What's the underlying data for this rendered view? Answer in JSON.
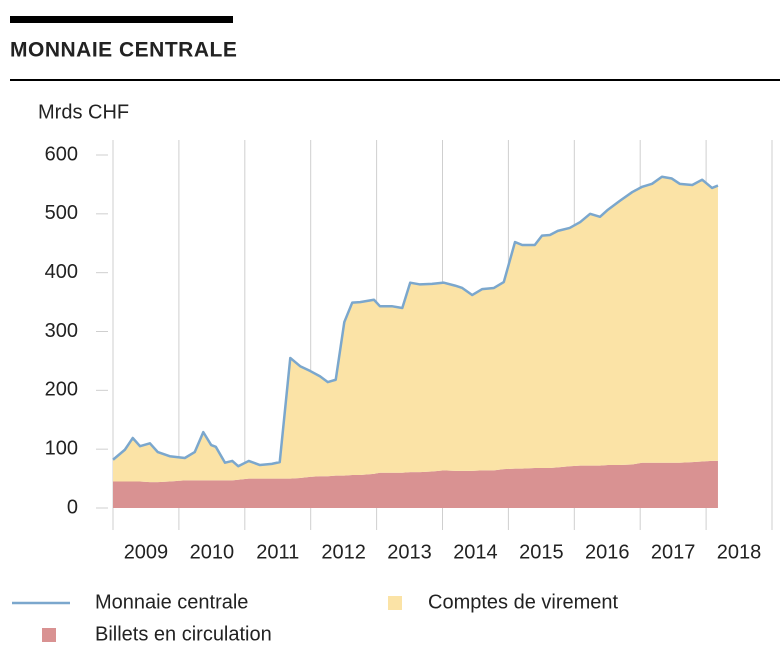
{
  "chart_data": {
    "type": "stacked_area_line",
    "title": "MONNAIE CENTRALE",
    "y_axis_label": "Mrds CHF",
    "xlim": [
      2009,
      2019
    ],
    "xticks": [
      2009,
      2010,
      2011,
      2012,
      2013,
      2014,
      2015,
      2016,
      2017,
      2018,
      2019
    ],
    "year_labels": [
      "2009",
      "2010",
      "2011",
      "2012",
      "2013",
      "2014",
      "2015",
      "2016",
      "2017",
      "2018"
    ],
    "ylim": [
      0,
      600
    ],
    "yticks": [
      0,
      100,
      200,
      300,
      400,
      500,
      600
    ],
    "grid": true,
    "x": [
      2009.0,
      2009.18,
      2009.3,
      2009.41,
      2009.56,
      2009.68,
      2009.86,
      2010.09,
      2010.24,
      2010.37,
      2010.49,
      2010.56,
      2010.7,
      2010.81,
      2010.9,
      2011.06,
      2011.23,
      2011.41,
      2011.53,
      2011.69,
      2011.84,
      2011.99,
      2012.14,
      2012.26,
      2012.38,
      2012.51,
      2012.63,
      2012.75,
      2012.96,
      2013.05,
      2013.23,
      2013.39,
      2013.51,
      2013.66,
      2013.84,
      2014.02,
      2014.19,
      2014.3,
      2014.45,
      2014.6,
      2014.78,
      2014.93,
      2015.1,
      2015.21,
      2015.4,
      2015.51,
      2015.63,
      2015.75,
      2015.93,
      2016.09,
      2016.24,
      2016.39,
      2016.51,
      2016.69,
      2016.88,
      2017.03,
      2017.18,
      2017.33,
      2017.48,
      2017.6,
      2017.79,
      2017.94,
      2018.09,
      2018.18
    ],
    "series": [
      {
        "name": "Billets en circulation",
        "kind": "area",
        "color": "#d99292",
        "values": [
          45,
          45,
          45,
          45,
          44,
          44,
          45,
          47,
          47,
          47,
          47,
          47,
          47,
          47,
          48,
          50,
          50,
          50,
          50,
          50,
          51,
          53,
          54,
          54,
          55,
          55,
          56,
          56,
          58,
          60,
          60,
          60,
          61,
          61,
          62,
          64,
          63,
          63,
          63,
          64,
          64,
          66,
          67,
          67,
          68,
          68,
          68,
          69,
          71,
          72,
          72,
          72,
          73,
          73,
          74,
          77,
          77,
          77,
          77,
          77,
          78,
          79,
          80,
          80
        ]
      },
      {
        "name": "Comptes de virement",
        "kind": "area",
        "color": "#fbe3a6",
        "values": [
          37,
          54,
          74,
          60,
          66,
          51,
          43,
          38,
          48,
          82,
          60,
          57,
          30,
          33,
          23,
          30,
          23,
          25,
          28,
          205,
          190,
          180,
          170,
          160,
          163,
          261,
          293,
          294,
          296,
          283,
          283,
          280,
          322,
          319,
          319,
          319,
          315,
          311,
          299,
          308,
          310,
          318,
          385,
          380,
          379,
          395,
          396,
          402,
          405,
          414,
          428,
          423,
          434,
          449,
          463,
          469,
          474,
          486,
          483,
          474,
          471,
          479,
          464,
          468
        ]
      },
      {
        "name": "Monnaie centrale",
        "kind": "line",
        "color": "#7ba7cd",
        "values": [
          82,
          99,
          119,
          105,
          110,
          95,
          88,
          85,
          95,
          129,
          107,
          104,
          77,
          80,
          71,
          80,
          73,
          75,
          78,
          255,
          241,
          233,
          224,
          214,
          218,
          316,
          349,
          350,
          354,
          343,
          343,
          340,
          383,
          380,
          381,
          383,
          378,
          374,
          362,
          372,
          374,
          384,
          452,
          447,
          447,
          463,
          464,
          471,
          476,
          486,
          500,
          495,
          507,
          522,
          537,
          546,
          551,
          563,
          560,
          551,
          549,
          558,
          544,
          548
        ]
      }
    ]
  }
}
